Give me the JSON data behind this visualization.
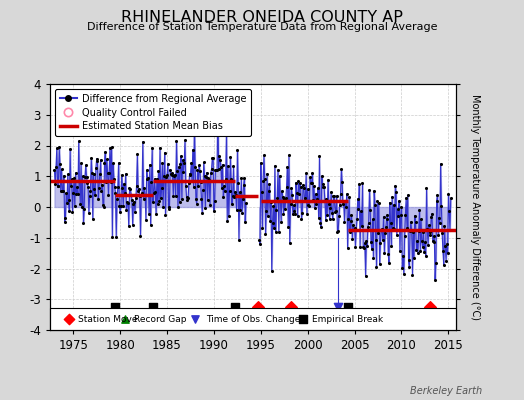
{
  "title": "RHINELANDER ONEIDA COUNTY AP",
  "subtitle": "Difference of Station Temperature Data from Regional Average",
  "ylabel_right": "Monthly Temperature Anomaly Difference (°C)",
  "ylim": [
    -4,
    4
  ],
  "xlim": [
    1972.5,
    2015.8
  ],
  "xticks": [
    1975,
    1980,
    1985,
    1990,
    1995,
    2000,
    2005,
    2010,
    2015
  ],
  "yticks": [
    -4,
    -3,
    -2,
    -1,
    0,
    1,
    2,
    3,
    4
  ],
  "bg_color": "#d8d8d8",
  "plot_bg_color": "#ffffff",
  "line_color": "#3333cc",
  "line_fill_color": "#8888dd",
  "dot_color": "#000000",
  "red_line_color": "#cc0000",
  "grid_color": "#cccccc",
  "station_move_times": [
    1994.75,
    1998.25,
    2013.0
  ],
  "obs_change_times": [
    2003.25
  ],
  "empirical_break_times": [
    1979.5,
    1983.5,
    1992.25,
    2004.25
  ],
  "bias_segments": [
    {
      "start": 1972.5,
      "end": 1979.5,
      "value": 0.85
    },
    {
      "start": 1979.5,
      "end": 1983.5,
      "value": 0.4
    },
    {
      "start": 1983.5,
      "end": 1992.25,
      "value": 0.85
    },
    {
      "start": 1992.25,
      "end": 1994.75,
      "value": 0.35
    },
    {
      "start": 1995.0,
      "end": 1998.25,
      "value": 0.2
    },
    {
      "start": 1998.25,
      "end": 2004.25,
      "value": 0.2
    },
    {
      "start": 2004.25,
      "end": 2015.8,
      "value": -0.75
    }
  ],
  "data_gap_start": 1993.5,
  "data_gap_end": 1994.75,
  "watermark": "Berkeley Earth",
  "marker_y": -3.25
}
